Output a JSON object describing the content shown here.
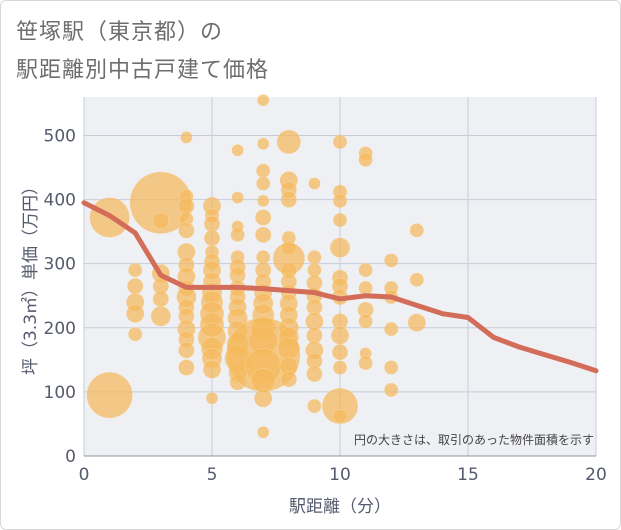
{
  "title": [
    "笹塚駅（東京都）の",
    "駅距離別中古戸建て価格"
  ],
  "chart_data": {
    "type": "scatter",
    "xlabel": "駅距離（分）",
    "ylabel": "坪（3.3㎡）単価（万円）",
    "xlim": [
      0,
      20
    ],
    "ylim": [
      0,
      560
    ],
    "x_ticks": [
      "0",
      "5",
      "10",
      "15",
      "20"
    ],
    "y_ticks": [
      "0",
      "100",
      "200",
      "300",
      "400",
      "500"
    ],
    "grid": true,
    "annotation": "円の大きさは、取引のあった物件面積を示す",
    "colors": {
      "bubble": "#f5b95c",
      "line": "#d46c5a",
      "plot_bg": "#eef0f4"
    },
    "bubbles": [
      {
        "x": 1,
        "y": 95,
        "s": 23
      },
      {
        "x": 1,
        "y": 372,
        "s": 20
      },
      {
        "x": 2,
        "y": 290,
        "s": 7
      },
      {
        "x": 2,
        "y": 265,
        "s": 8
      },
      {
        "x": 2,
        "y": 240,
        "s": 9
      },
      {
        "x": 2,
        "y": 222,
        "s": 9
      },
      {
        "x": 2,
        "y": 190,
        "s": 7
      },
      {
        "x": 3,
        "y": 395,
        "s": 31
      },
      {
        "x": 3,
        "y": 367,
        "s": 8
      },
      {
        "x": 3,
        "y": 285,
        "s": 9
      },
      {
        "x": 3,
        "y": 265,
        "s": 8
      },
      {
        "x": 3,
        "y": 245,
        "s": 8
      },
      {
        "x": 3,
        "y": 218,
        "s": 10
      },
      {
        "x": 4,
        "y": 497,
        "s": 6
      },
      {
        "x": 4,
        "y": 405,
        "s": 7
      },
      {
        "x": 4,
        "y": 390,
        "s": 8
      },
      {
        "x": 4,
        "y": 370,
        "s": 7
      },
      {
        "x": 4,
        "y": 352,
        "s": 8
      },
      {
        "x": 4,
        "y": 318,
        "s": 9
      },
      {
        "x": 4,
        "y": 298,
        "s": 8
      },
      {
        "x": 4,
        "y": 280,
        "s": 9
      },
      {
        "x": 4,
        "y": 262,
        "s": 8
      },
      {
        "x": 4,
        "y": 248,
        "s": 10
      },
      {
        "x": 4,
        "y": 232,
        "s": 8
      },
      {
        "x": 4,
        "y": 218,
        "s": 8
      },
      {
        "x": 4,
        "y": 198,
        "s": 9
      },
      {
        "x": 4,
        "y": 182,
        "s": 8
      },
      {
        "x": 4,
        "y": 165,
        "s": 8
      },
      {
        "x": 4,
        "y": 138,
        "s": 8
      },
      {
        "x": 5,
        "y": 390,
        "s": 9
      },
      {
        "x": 5,
        "y": 375,
        "s": 7
      },
      {
        "x": 5,
        "y": 362,
        "s": 8
      },
      {
        "x": 5,
        "y": 340,
        "s": 8
      },
      {
        "x": 5,
        "y": 318,
        "s": 7
      },
      {
        "x": 5,
        "y": 303,
        "s": 8
      },
      {
        "x": 5,
        "y": 290,
        "s": 9
      },
      {
        "x": 5,
        "y": 272,
        "s": 9
      },
      {
        "x": 5,
        "y": 255,
        "s": 10
      },
      {
        "x": 5,
        "y": 240,
        "s": 11
      },
      {
        "x": 5,
        "y": 222,
        "s": 12
      },
      {
        "x": 5,
        "y": 205,
        "s": 12
      },
      {
        "x": 5,
        "y": 185,
        "s": 14
      },
      {
        "x": 5,
        "y": 168,
        "s": 11
      },
      {
        "x": 5,
        "y": 152,
        "s": 10
      },
      {
        "x": 5,
        "y": 135,
        "s": 9
      },
      {
        "x": 5,
        "y": 90,
        "s": 6
      },
      {
        "x": 6,
        "y": 477,
        "s": 6
      },
      {
        "x": 6,
        "y": 403,
        "s": 6
      },
      {
        "x": 6,
        "y": 358,
        "s": 6
      },
      {
        "x": 6,
        "y": 345,
        "s": 7
      },
      {
        "x": 6,
        "y": 310,
        "s": 7
      },
      {
        "x": 6,
        "y": 295,
        "s": 8
      },
      {
        "x": 6,
        "y": 282,
        "s": 8
      },
      {
        "x": 6,
        "y": 262,
        "s": 8
      },
      {
        "x": 6,
        "y": 248,
        "s": 8
      },
      {
        "x": 6,
        "y": 232,
        "s": 9
      },
      {
        "x": 6,
        "y": 215,
        "s": 10
      },
      {
        "x": 6,
        "y": 195,
        "s": 10
      },
      {
        "x": 6,
        "y": 175,
        "s": 11
      },
      {
        "x": 6,
        "y": 152,
        "s": 13
      },
      {
        "x": 6,
        "y": 130,
        "s": 9
      },
      {
        "x": 6,
        "y": 115,
        "s": 8
      },
      {
        "x": 7,
        "y": 555,
        "s": 6
      },
      {
        "x": 7,
        "y": 487,
        "s": 6
      },
      {
        "x": 7,
        "y": 445,
        "s": 7
      },
      {
        "x": 7,
        "y": 425,
        "s": 7
      },
      {
        "x": 7,
        "y": 398,
        "s": 6
      },
      {
        "x": 7,
        "y": 372,
        "s": 8
      },
      {
        "x": 7,
        "y": 345,
        "s": 8
      },
      {
        "x": 7,
        "y": 310,
        "s": 7
      },
      {
        "x": 7,
        "y": 290,
        "s": 8
      },
      {
        "x": 7,
        "y": 272,
        "s": 8
      },
      {
        "x": 7,
        "y": 255,
        "s": 9
      },
      {
        "x": 7,
        "y": 238,
        "s": 10
      },
      {
        "x": 7,
        "y": 220,
        "s": 11
      },
      {
        "x": 7,
        "y": 200,
        "s": 12
      },
      {
        "x": 7,
        "y": 180,
        "s": 14
      },
      {
        "x": 7,
        "y": 158,
        "s": 37
      },
      {
        "x": 7,
        "y": 140,
        "s": 18
      },
      {
        "x": 7,
        "y": 118,
        "s": 12
      },
      {
        "x": 7,
        "y": 90,
        "s": 9
      },
      {
        "x": 7,
        "y": 37,
        "s": 6
      },
      {
        "x": 8,
        "y": 490,
        "s": 12
      },
      {
        "x": 8,
        "y": 430,
        "s": 9
      },
      {
        "x": 8,
        "y": 415,
        "s": 8
      },
      {
        "x": 8,
        "y": 400,
        "s": 8
      },
      {
        "x": 8,
        "y": 340,
        "s": 7
      },
      {
        "x": 8,
        "y": 325,
        "s": 7
      },
      {
        "x": 8,
        "y": 308,
        "s": 16
      },
      {
        "x": 8,
        "y": 290,
        "s": 8
      },
      {
        "x": 8,
        "y": 272,
        "s": 8
      },
      {
        "x": 8,
        "y": 255,
        "s": 8
      },
      {
        "x": 8,
        "y": 238,
        "s": 9
      },
      {
        "x": 8,
        "y": 220,
        "s": 9
      },
      {
        "x": 8,
        "y": 200,
        "s": 10
      },
      {
        "x": 8,
        "y": 185,
        "s": 10
      },
      {
        "x": 8,
        "y": 168,
        "s": 11
      },
      {
        "x": 8,
        "y": 140,
        "s": 9
      },
      {
        "x": 8,
        "y": 120,
        "s": 8
      },
      {
        "x": 9,
        "y": 425,
        "s": 6
      },
      {
        "x": 9,
        "y": 310,
        "s": 7
      },
      {
        "x": 9,
        "y": 290,
        "s": 7
      },
      {
        "x": 9,
        "y": 270,
        "s": 8
      },
      {
        "x": 9,
        "y": 250,
        "s": 8
      },
      {
        "x": 9,
        "y": 232,
        "s": 8
      },
      {
        "x": 9,
        "y": 210,
        "s": 9
      },
      {
        "x": 9,
        "y": 188,
        "s": 8
      },
      {
        "x": 9,
        "y": 165,
        "s": 9
      },
      {
        "x": 9,
        "y": 148,
        "s": 8
      },
      {
        "x": 9,
        "y": 128,
        "s": 8
      },
      {
        "x": 9,
        "y": 78,
        "s": 7
      },
      {
        "x": 10,
        "y": 490,
        "s": 7
      },
      {
        "x": 10,
        "y": 412,
        "s": 7
      },
      {
        "x": 10,
        "y": 398,
        "s": 7
      },
      {
        "x": 10,
        "y": 368,
        "s": 7
      },
      {
        "x": 10,
        "y": 325,
        "s": 10
      },
      {
        "x": 10,
        "y": 278,
        "s": 8
      },
      {
        "x": 10,
        "y": 265,
        "s": 8
      },
      {
        "x": 10,
        "y": 248,
        "s": 8
      },
      {
        "x": 10,
        "y": 210,
        "s": 8
      },
      {
        "x": 10,
        "y": 188,
        "s": 9
      },
      {
        "x": 10,
        "y": 162,
        "s": 8
      },
      {
        "x": 10,
        "y": 138,
        "s": 7
      },
      {
        "x": 10,
        "y": 78,
        "s": 18
      },
      {
        "x": 10,
        "y": 62,
        "s": 7
      },
      {
        "x": 11,
        "y": 472,
        "s": 7
      },
      {
        "x": 11,
        "y": 462,
        "s": 7
      },
      {
        "x": 11,
        "y": 290,
        "s": 7
      },
      {
        "x": 11,
        "y": 262,
        "s": 7
      },
      {
        "x": 11,
        "y": 228,
        "s": 8
      },
      {
        "x": 11,
        "y": 210,
        "s": 7
      },
      {
        "x": 11,
        "y": 160,
        "s": 6
      },
      {
        "x": 11,
        "y": 145,
        "s": 7
      },
      {
        "x": 12,
        "y": 305,
        "s": 7
      },
      {
        "x": 12,
        "y": 262,
        "s": 7
      },
      {
        "x": 12,
        "y": 248,
        "s": 7
      },
      {
        "x": 12,
        "y": 198,
        "s": 7
      },
      {
        "x": 12,
        "y": 138,
        "s": 7
      },
      {
        "x": 12,
        "y": 103,
        "s": 7
      },
      {
        "x": 13,
        "y": 352,
        "s": 7
      },
      {
        "x": 13,
        "y": 275,
        "s": 7
      },
      {
        "x": 13,
        "y": 208,
        "s": 9
      }
    ],
    "line": {
      "x": [
        0,
        1,
        2,
        3,
        4,
        5,
        6,
        7,
        8,
        9,
        10,
        11,
        12,
        13,
        14,
        15,
        16,
        17,
        18,
        19,
        20
      ],
      "y": [
        395,
        375,
        348,
        282,
        263,
        263,
        263,
        261,
        258,
        255,
        245,
        250,
        248,
        235,
        222,
        216,
        185,
        170,
        158,
        146,
        133
      ]
    }
  }
}
